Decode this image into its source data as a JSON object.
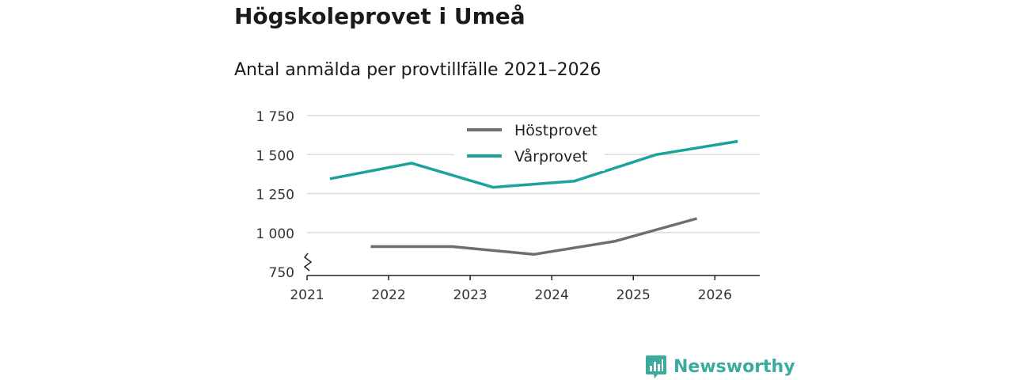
{
  "title": "Högskoleprovet i Umeå",
  "subtitle": "Antal anmälda per provtillfälle 2021–2026",
  "brand": "Newsworthy",
  "colors": {
    "hostprovet": "#6e6e6e",
    "varprovet": "#1aa39a",
    "grid": "#dcdcdc",
    "axis": "#222222",
    "brand": "#3bab9f"
  },
  "chart_data": {
    "type": "line",
    "title": "Högskoleprovet i Umeå",
    "subtitle": "Antal anmälda per provtillfälle 2021–2026",
    "xlabel": "",
    "ylabel": "",
    "xlim": [
      2021,
      2026.55
    ],
    "ylim": [
      725,
      1750
    ],
    "xticks": [
      2021,
      2022,
      2023,
      2024,
      2025,
      2026
    ],
    "xtick_labels": [
      "2021",
      "2022",
      "2023",
      "2024",
      "2025",
      "2026"
    ],
    "yticks": [
      750,
      1000,
      1250,
      1500,
      1750
    ],
    "ytick_labels": [
      "750",
      "1 000",
      "1 250",
      "1 500",
      "1 750"
    ],
    "axis_break": true,
    "grid": true,
    "legend_position": "top-center",
    "series": [
      {
        "name": "Höstprovet",
        "color": "#6e6e6e",
        "x": [
          2021.78,
          2022.78,
          2023.78,
          2024.78,
          2025.78
        ],
        "values": [
          910,
          910,
          860,
          945,
          1090
        ]
      },
      {
        "name": "Vårprovet",
        "color": "#1aa39a",
        "x": [
          2021.28,
          2022.28,
          2023.28,
          2024.28,
          2025.28,
          2026.28
        ],
        "values": [
          1345,
          1445,
          1290,
          1330,
          1500,
          1585
        ]
      }
    ]
  }
}
